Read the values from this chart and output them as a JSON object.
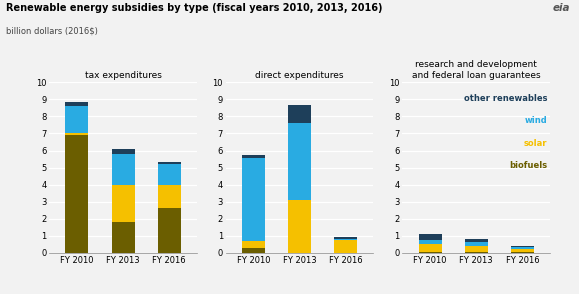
{
  "title": "Renewable energy subsidies by type (fiscal years 2010, 2013, 2016)",
  "subtitle": "billion dollars (2016$)",
  "years": [
    "FY 2010",
    "FY 2013",
    "FY 2016"
  ],
  "categories": [
    "biofuels",
    "solar",
    "wind",
    "other renewables"
  ],
  "colors": {
    "biofuels": "#6b5e00",
    "solar": "#f5c000",
    "wind": "#29abe2",
    "other renewables": "#1e3f5a"
  },
  "tax_expenditures": {
    "biofuels": [
      6.9,
      1.8,
      2.65
    ],
    "solar": [
      0.1,
      2.2,
      1.35
    ],
    "wind": [
      1.6,
      1.8,
      1.2
    ],
    "other renewables": [
      0.25,
      0.3,
      0.1
    ]
  },
  "direct_expenditures": {
    "biofuels": [
      0.3,
      0.0,
      0.0
    ],
    "solar": [
      0.4,
      3.1,
      0.78
    ],
    "wind": [
      4.85,
      4.5,
      0.06
    ],
    "other renewables": [
      0.2,
      1.05,
      0.06
    ]
  },
  "rd_federal": {
    "biofuels": [
      0.03,
      0.03,
      0.02
    ],
    "solar": [
      0.48,
      0.38,
      0.2
    ],
    "wind": [
      0.22,
      0.22,
      0.1
    ],
    "other renewables": [
      0.35,
      0.18,
      0.1
    ]
  },
  "panel_titles": [
    "tax expenditures",
    "direct expenditures",
    "research and development\nand federal loan guarantees"
  ],
  "ylim": [
    0,
    10
  ],
  "yticks": [
    0,
    1,
    2,
    3,
    4,
    5,
    6,
    7,
    8,
    9,
    10
  ],
  "legend_labels": [
    "other renewables",
    "wind",
    "solar",
    "biofuels"
  ],
  "legend_colors": [
    "#1e3f5a",
    "#29abe2",
    "#f5c000",
    "#6b5e00"
  ],
  "bg_color": "#f2f2f2"
}
